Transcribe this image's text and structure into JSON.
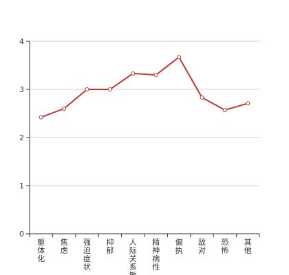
{
  "chart_data": {
    "type": "line",
    "categories": [
      "躯体化",
      "焦虑",
      "强迫症状",
      "抑郁",
      "人际关系敏感",
      "精神病性",
      "偏执",
      "敌对",
      "恐怖",
      "其他"
    ],
    "series": [
      {
        "values": [
          2.42,
          2.6,
          3.0,
          3.0,
          3.33,
          3.3,
          3.67,
          2.83,
          2.57,
          2.71
        ]
      }
    ],
    "ylim": [
      0,
      4
    ],
    "yticks": [
      "0",
      "1",
      "2",
      "3",
      "4"
    ],
    "grid": true,
    "colors": {
      "line": "#c23531",
      "axis": "#333333",
      "grid": "#cccccc"
    }
  }
}
